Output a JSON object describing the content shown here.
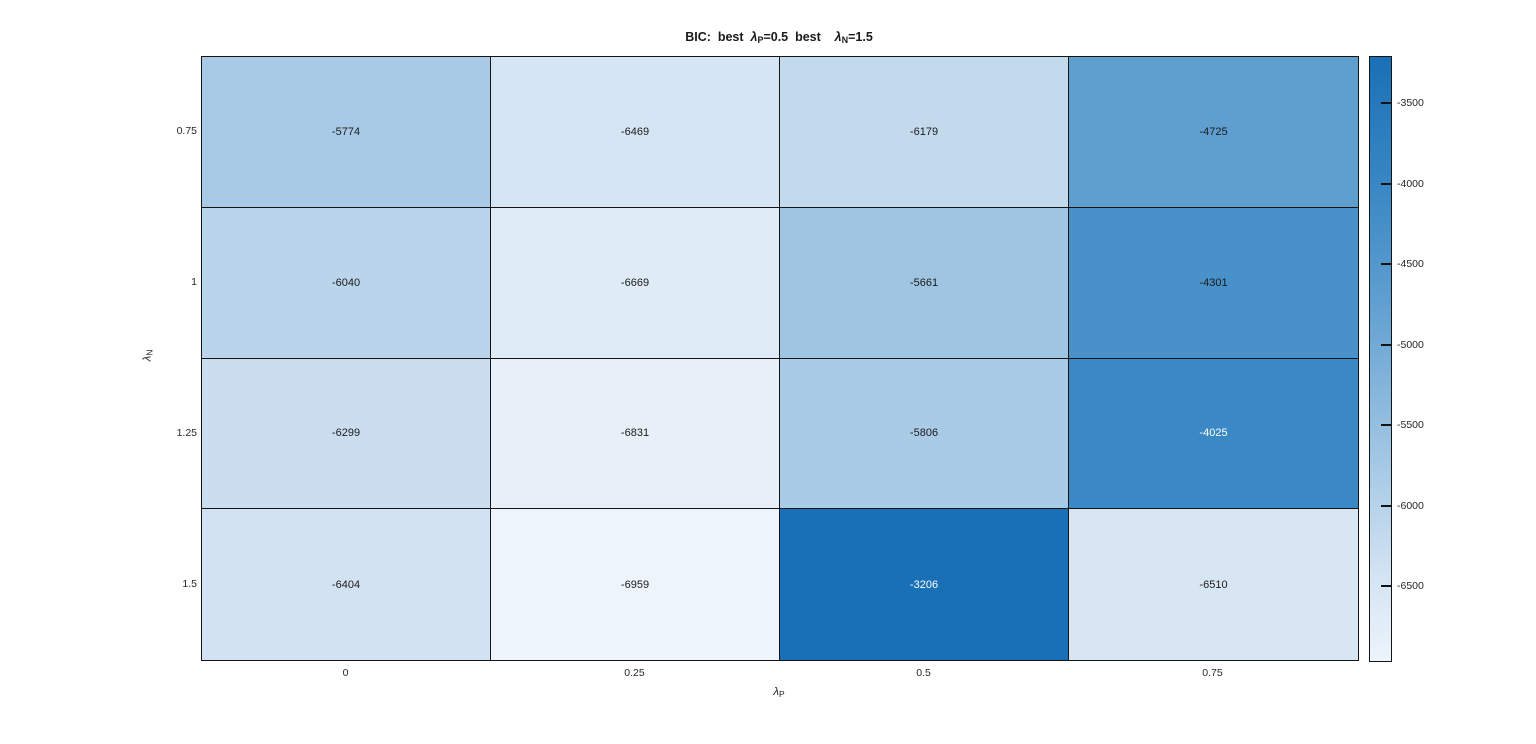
{
  "figure": {
    "background_color": "#ffffff",
    "axis_color": "#141414",
    "label_color": "#262626"
  },
  "chart_data": {
    "type": "heatmap",
    "title": "BIC:  best  λP=0.5  best    λN=1.5",
    "title_segments": [
      {
        "text": "BIC:  best  ",
        "kind": "plain"
      },
      {
        "text": "λ",
        "kind": "lambda"
      },
      {
        "text": "P",
        "kind": "sub"
      },
      {
        "text": "=0.5  best    ",
        "kind": "plain"
      },
      {
        "text": "λ",
        "kind": "lambda"
      },
      {
        "text": "N",
        "kind": "sub"
      },
      {
        "text": "=1.5",
        "kind": "plain"
      }
    ],
    "xlabel": "λP",
    "xlabel_base": "λ",
    "xlabel_sub": "P",
    "ylabel": "λN",
    "ylabel_base": "λ",
    "ylabel_sub": "N",
    "x_tick_labels": [
      "0",
      "0.25",
      "0.5",
      "0.75"
    ],
    "y_tick_labels": [
      "0.75",
      "1",
      "1.25",
      "1.5"
    ],
    "values": [
      [
        -5774,
        -6469,
        -6179,
        -4725
      ],
      [
        -6040,
        -6669,
        -5661,
        -4301
      ],
      [
        -6299,
        -6831,
        -5806,
        -4025
      ],
      [
        -6404,
        -6959,
        -3206,
        -6510
      ]
    ],
    "cell_labels": [
      [
        "-5774",
        "-6469",
        "-6179",
        "-4725"
      ],
      [
        "-6040",
        "-6669",
        "-5661",
        "-4301"
      ],
      [
        "-6299",
        "-6831",
        "-5806",
        "-4025"
      ],
      [
        "-6404",
        "-6959",
        "-3206",
        "-6510"
      ]
    ],
    "vmin": -6959,
    "vmax": -3206,
    "grid_on": true,
    "legend_position": "colorbar-right",
    "colorbar": {
      "tick_values": [
        -3500,
        -4000,
        -4500,
        -5000,
        -5500,
        -6000,
        -6500
      ],
      "tick_labels": [
        "-3500",
        "-4000",
        "-4500",
        "-5000",
        "-5500",
        "-6000",
        "-6500"
      ]
    },
    "colormap": {
      "name": "blues",
      "stops": [
        {
          "f": 0.0,
          "color": "#edf4fb"
        },
        {
          "f": 0.13,
          "color": "#d6e5f3"
        },
        {
          "f": 0.31,
          "color": "#a9cbe6"
        },
        {
          "f": 0.6,
          "color": "#5e9ed0"
        },
        {
          "f": 0.78,
          "color": "#3a88c4"
        },
        {
          "f": 1.0,
          "color": "#1a70b6"
        }
      ],
      "white_text_threshold": 0.75,
      "light_text_color": "#ffffff",
      "dark_text_color": "#1a1a1a"
    }
  }
}
